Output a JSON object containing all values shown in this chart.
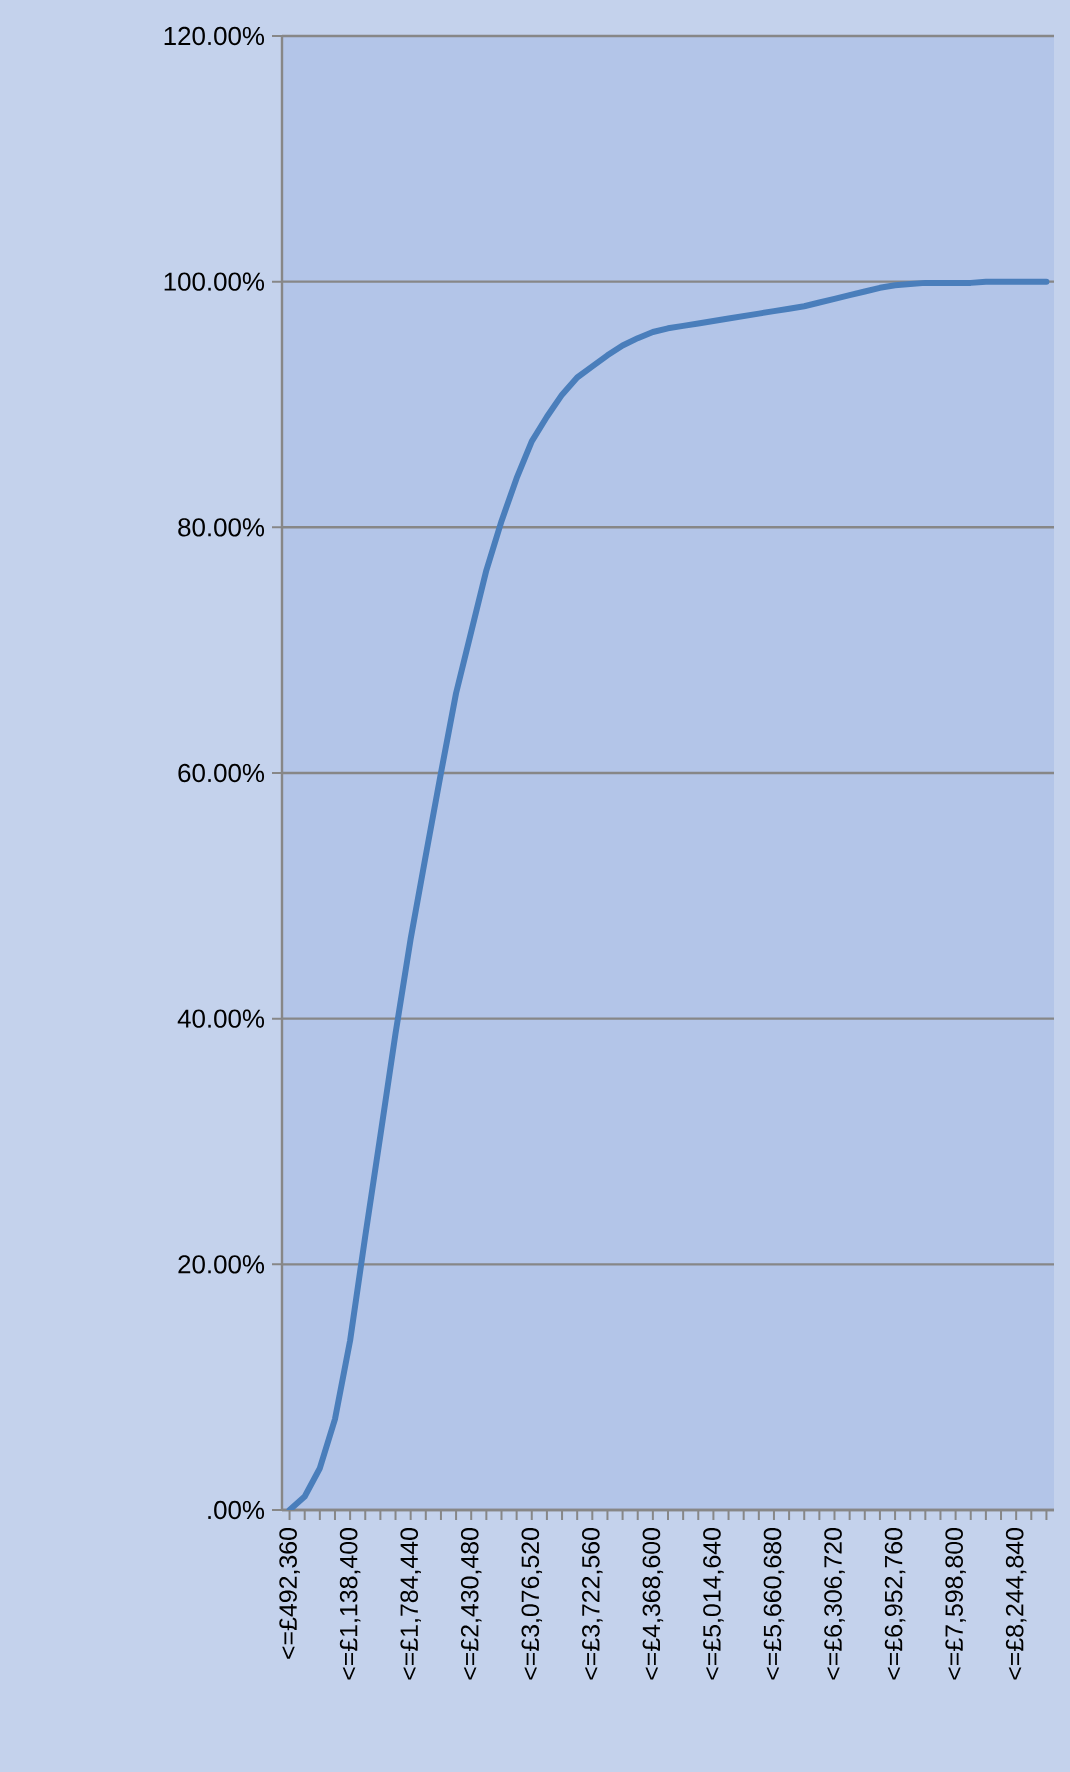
{
  "chart_data": {
    "type": "line",
    "categories": [
      "<=£492,360",
      null,
      null,
      null,
      "<=£1,138,400",
      null,
      null,
      null,
      "<=£1,784,440",
      null,
      null,
      null,
      "<=£2,430,480",
      null,
      null,
      null,
      "<=£3,076,520",
      null,
      null,
      null,
      "<=£3,722,560",
      null,
      null,
      null,
      "<=£4,368,600",
      null,
      null,
      null,
      "<=£5,014,640",
      null,
      null,
      null,
      "<=£5,660,680",
      null,
      null,
      null,
      "<=£6,306,720",
      null,
      null,
      null,
      "<=£6,952,760",
      null,
      null,
      null,
      "<=£7,598,800",
      null,
      null,
      null,
      "<=£8,244,840",
      null,
      null
    ],
    "series": [
      {
        "color": "#4a7ebb",
        "values": [
          0,
          1.1,
          3.4,
          7.4,
          13.8,
          22.3,
          30.5,
          38.8,
          46.5,
          53.3,
          60,
          66.5,
          71.5,
          76.5,
          80.5,
          84,
          87,
          89,
          90.8,
          92.2,
          93.1,
          94,
          94.8,
          95.4,
          95.9,
          96.2,
          96.4,
          96.6,
          96.8,
          97,
          97.2,
          97.4,
          97.6,
          97.8,
          98,
          98.3,
          98.6,
          98.9,
          99.2,
          99.5,
          99.7,
          99.8,
          99.9,
          99.9,
          99.9,
          99.9,
          100,
          100,
          100,
          100,
          100
        ]
      }
    ],
    "ylim": [
      0,
      120
    ],
    "yticks": [
      {
        "value": 0,
        "label": ".00%"
      },
      {
        "value": 20,
        "label": "20.00%"
      },
      {
        "value": 40,
        "label": "40.00%"
      },
      {
        "value": 60,
        "label": "60.00%"
      },
      {
        "value": 80,
        "label": "80.00%"
      },
      {
        "value": 100,
        "label": "100.00%"
      },
      {
        "value": 120,
        "label": "120.00%"
      }
    ],
    "grid": "y",
    "marker": "none",
    "line_style": "solid"
  }
}
